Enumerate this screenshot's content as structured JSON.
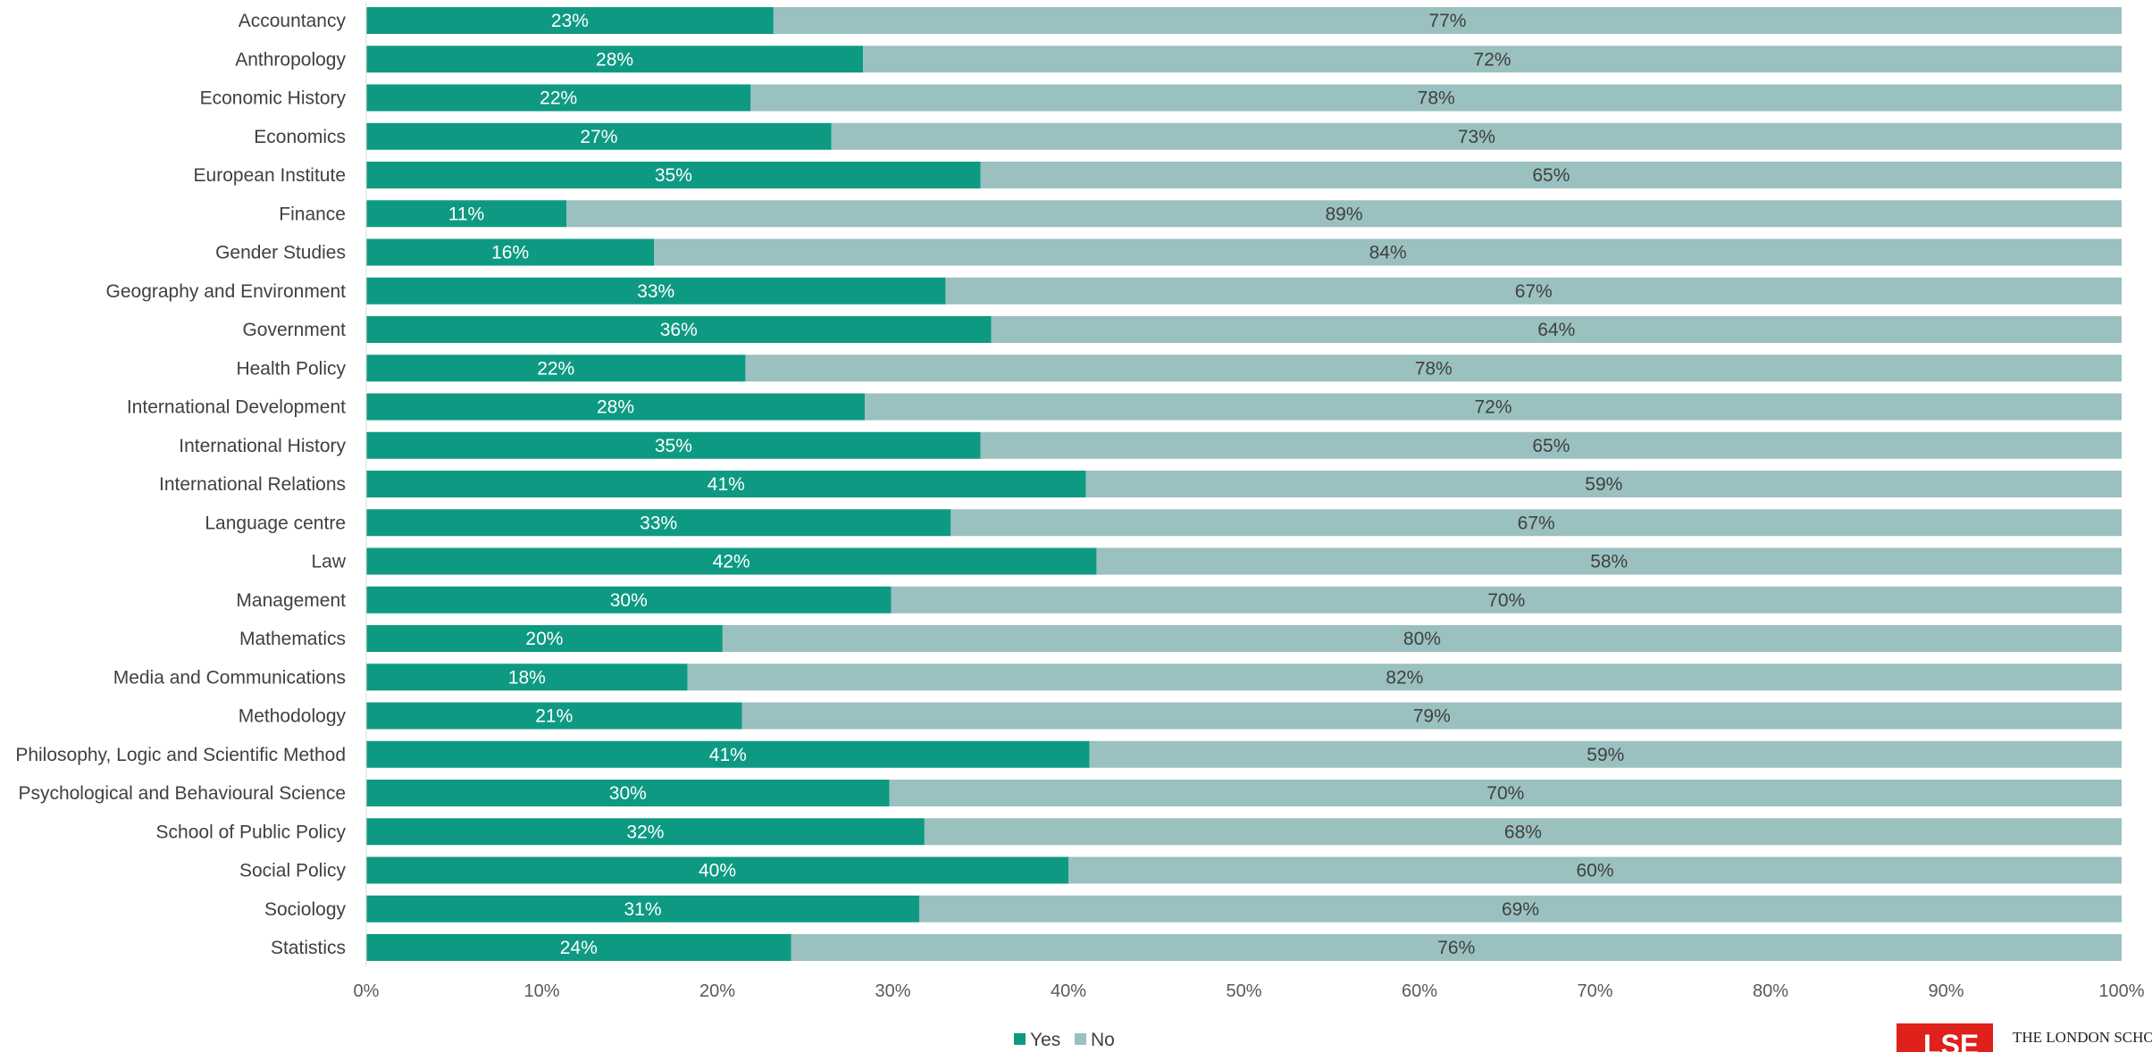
{
  "chart_data": {
    "type": "bar",
    "orientation": "horizontal",
    "stacked": true,
    "title": "",
    "xlabel": "",
    "ylabel": "",
    "xlim": [
      0,
      100
    ],
    "x_ticks": [
      "0%",
      "10%",
      "20%",
      "30%",
      "40%",
      "50%",
      "60%",
      "70%",
      "80%",
      "90%",
      "100%"
    ],
    "grid": false,
    "legend_position": "bottom",
    "categories": [
      "Accountancy",
      "Anthropology",
      "Economic History",
      "Economics",
      "European Institute",
      "Finance",
      "Gender Studies",
      "Geography and Environment",
      "Government",
      "Health Policy",
      "International Development",
      "International History",
      "International Relations",
      "Language centre",
      "Law",
      "Management",
      "Mathematics",
      "Media and Communications",
      "Methodology",
      "Philosophy, Logic and Scientific Method",
      "Psychological and Behavioural Science",
      "School of Public Policy",
      "Social Policy",
      "Sociology",
      "Statistics"
    ],
    "series": [
      {
        "name": "Yes",
        "color": "#0e9a82",
        "values": [
          23.2,
          28.3,
          21.9,
          26.5,
          35.0,
          11.4,
          16.4,
          33.0,
          35.6,
          21.6,
          28.4,
          35.0,
          41.0,
          33.3,
          41.6,
          29.9,
          20.3,
          18.3,
          21.4,
          41.2,
          29.8,
          31.8,
          40.0,
          31.5,
          24.2
        ],
        "labels": [
          "23%",
          "28%",
          "22%",
          "27%",
          "35%",
          "11%",
          "16%",
          "33%",
          "36%",
          "22%",
          "28%",
          "35%",
          "41%",
          "33%",
          "42%",
          "30%",
          "20%",
          "18%",
          "21%",
          "41%",
          "30%",
          "32%",
          "40%",
          "31%",
          "24%"
        ]
      },
      {
        "name": "No",
        "color": "#9ac1c0",
        "values": [
          76.8,
          71.7,
          78.1,
          73.5,
          65.0,
          88.6,
          83.6,
          67.0,
          64.4,
          78.4,
          71.6,
          65.0,
          59.0,
          66.7,
          58.4,
          70.1,
          79.7,
          81.7,
          78.6,
          58.8,
          70.2,
          68.2,
          60.0,
          68.5,
          75.8
        ],
        "labels": [
          "77%",
          "72%",
          "78%",
          "73%",
          "65%",
          "89%",
          "84%",
          "67%",
          "64%",
          "78%",
          "72%",
          "65%",
          "59%",
          "67%",
          "58%",
          "70%",
          "80%",
          "82%",
          "79%",
          "59%",
          "70%",
          "68%",
          "60%",
          "69%",
          "76%"
        ]
      }
    ]
  },
  "logo": {
    "letters": "LSE",
    "text": "THE LONDON SCHOOL"
  }
}
